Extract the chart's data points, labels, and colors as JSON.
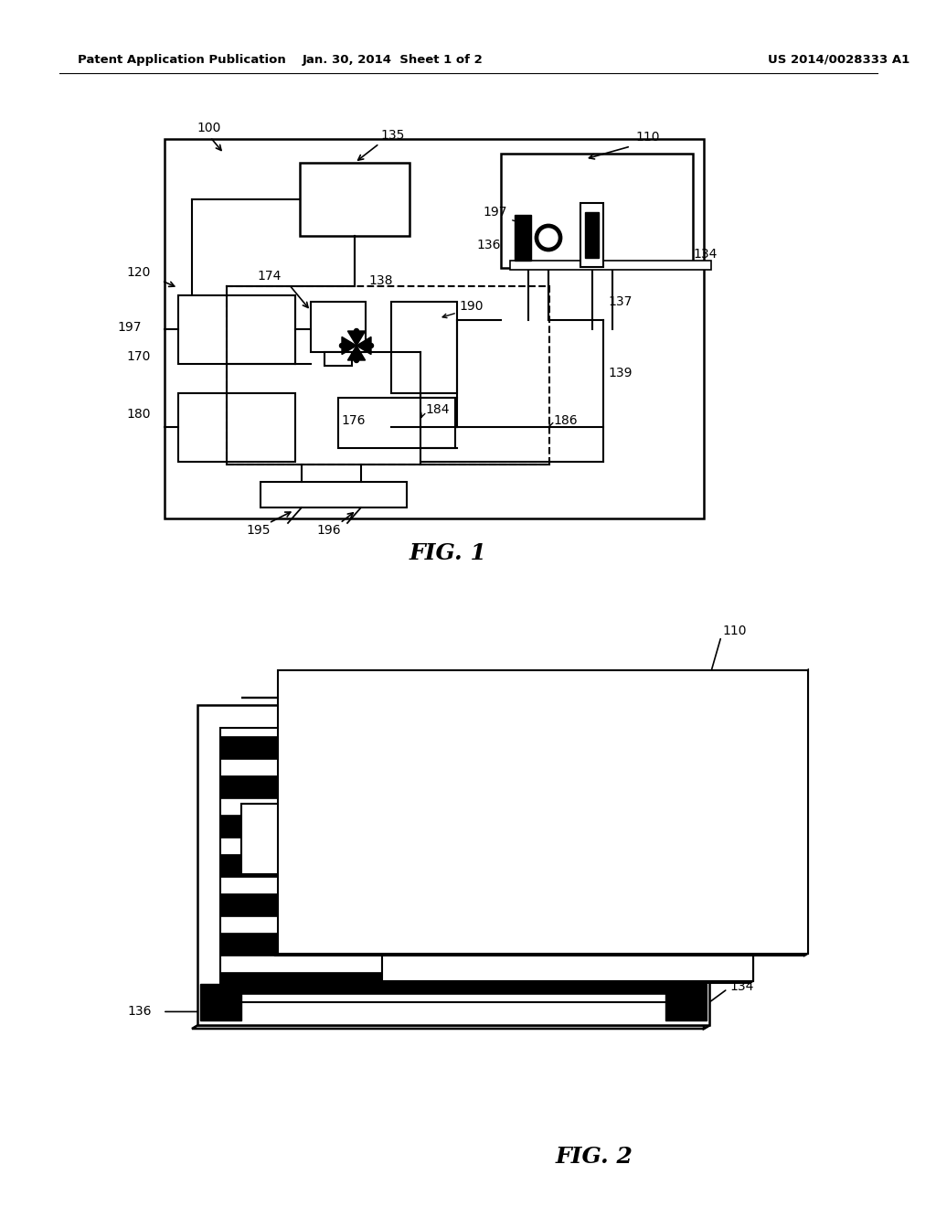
{
  "header_left": "Patent Application Publication",
  "header_mid": "Jan. 30, 2014  Sheet 1 of 2",
  "header_right": "US 2014/0028333 A1",
  "bg_color": "#ffffff"
}
